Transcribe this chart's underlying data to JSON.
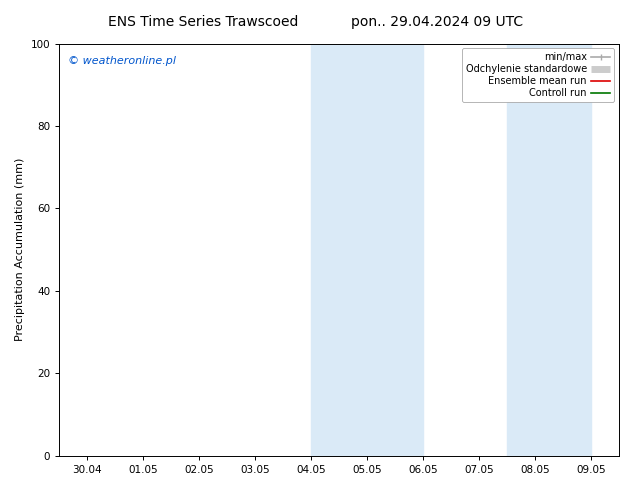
{
  "title_left": "ENS Time Series Trawscoed",
  "title_right": "pon.. 29.04.2024 09 UTC",
  "ylabel": "Precipitation Accumulation (mm)",
  "watermark": "© weatheronline.pl",
  "watermark_color": "#0055cc",
  "ylim": [
    0,
    100
  ],
  "background_color": "#ffffff",
  "plot_bg_color": "#ffffff",
  "x_tick_labels": [
    "30.04",
    "01.05",
    "02.05",
    "03.05",
    "04.05",
    "05.05",
    "06.05",
    "07.05",
    "08.05",
    "09.05"
  ],
  "x_tick_positions": [
    0,
    1,
    2,
    3,
    4,
    5,
    6,
    7,
    8,
    9
  ],
  "shaded_bands": [
    {
      "x_start": 4.0,
      "x_end": 6.0,
      "color": "#daeaf7",
      "alpha": 1.0
    },
    {
      "x_start": 7.5,
      "x_end": 9.0,
      "color": "#daeaf7",
      "alpha": 1.0
    }
  ],
  "legend_entries": [
    {
      "label": "min/max",
      "color": "#aaaaaa",
      "lw": 1.2,
      "style": "line_with_bar"
    },
    {
      "label": "Odchylenie standardowe",
      "color": "#cccccc",
      "lw": 5,
      "style": "thick_line"
    },
    {
      "label": "Ensemble mean run",
      "color": "#dd0000",
      "lw": 1.2,
      "style": "line"
    },
    {
      "label": "Controll run",
      "color": "#007700",
      "lw": 1.2,
      "style": "line"
    }
  ],
  "font_size_title": 10,
  "font_size_labels": 8,
  "font_size_ticks": 7.5,
  "font_size_watermark": 8,
  "font_size_legend": 7
}
